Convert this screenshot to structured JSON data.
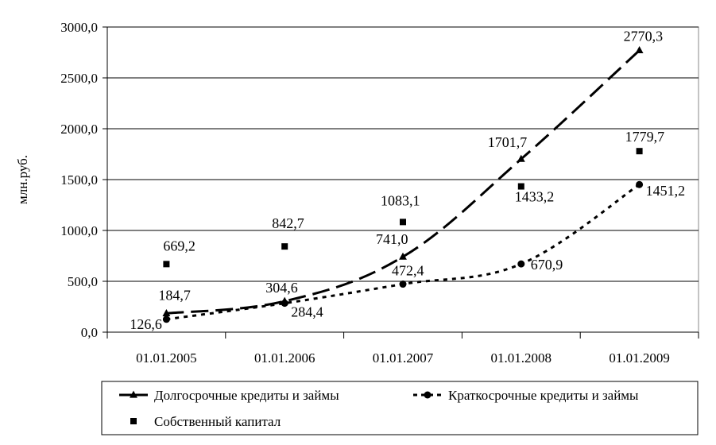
{
  "chart_data": {
    "type": "line",
    "title": "",
    "ylabel": "млн.руб.",
    "xlabel": "",
    "categories": [
      "01.01.2005",
      "01.01.2006",
      "01.01.2007",
      "01.01.2008",
      "01.01.2009"
    ],
    "ylim": [
      0,
      3000
    ],
    "yticks": [
      "0,0",
      "500,0",
      "1000,0",
      "1500,0",
      "2000,0",
      "2500,0",
      "3000,0"
    ],
    "grid": "horizontal",
    "legend_position": "bottom",
    "series": [
      {
        "name": "Долгосрочные кредиты и займы",
        "values": [
          184.7,
          304.6,
          741.0,
          1701.7,
          2770.3
        ],
        "labels": [
          "184,7",
          "304,6",
          "741,0",
          "1701,7",
          "2770,3"
        ],
        "marker": "triangle",
        "line": "long-dash",
        "color": "#000000"
      },
      {
        "name": "Краткосрочные кредиты и займы",
        "values": [
          126.6,
          284.4,
          472.4,
          670.9,
          1451.2
        ],
        "labels": [
          "126,6",
          "284,4",
          "472,4",
          "670,9",
          "1451,2"
        ],
        "marker": "circle",
        "line": "dotted",
        "color": "#000000"
      },
      {
        "name": "Собственный капитал",
        "values": [
          669.2,
          842.7,
          1083.1,
          1433.2,
          1779.7
        ],
        "labels": [
          "669,2",
          "842,7",
          "1083,1",
          "1433,2",
          "1779,7"
        ],
        "marker": "square",
        "line": "none",
        "color": "#000000"
      }
    ]
  }
}
